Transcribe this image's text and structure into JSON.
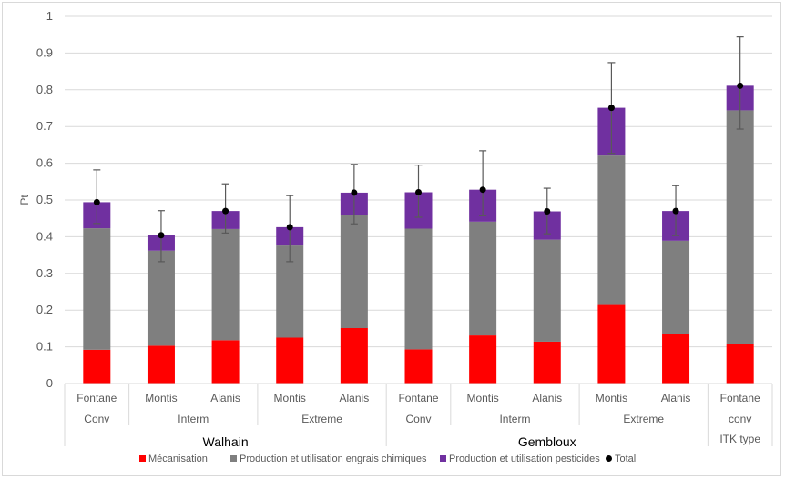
{
  "chart_data": {
    "type": "bar",
    "stacked": true,
    "title": "",
    "xlabel": "",
    "ylabel": "Pt",
    "ylim": [
      0,
      1
    ],
    "yticks": [
      "0",
      "0.1",
      "0.2",
      "0.3",
      "0.4",
      "0.5",
      "0.6",
      "0.7",
      "0.8",
      "0.9",
      "1"
    ],
    "grid": true,
    "legend_position": "bottom",
    "categories": [
      {
        "variety": "Fontane",
        "itk": "Conv",
        "site": "Walhain"
      },
      {
        "variety": "Montis",
        "itk": "Interm",
        "site": "Walhain"
      },
      {
        "variety": "Alanis",
        "itk": "Interm",
        "site": "Walhain"
      },
      {
        "variety": "Montis",
        "itk": "Extreme",
        "site": "Walhain"
      },
      {
        "variety": "Alanis",
        "itk": "Extreme",
        "site": "Walhain"
      },
      {
        "variety": "Fontane",
        "itk": "Conv",
        "site": "Gembloux"
      },
      {
        "variety": "Montis",
        "itk": "Interm",
        "site": "Gembloux"
      },
      {
        "variety": "Alanis",
        "itk": "Interm",
        "site": "Gembloux"
      },
      {
        "variety": "Montis",
        "itk": "Extreme",
        "site": "Gembloux"
      },
      {
        "variety": "Alanis",
        "itk": "Extreme",
        "site": "Gembloux"
      },
      {
        "variety": "Fontane",
        "itk": "conv",
        "site": "ITK type"
      }
    ],
    "itk_groups": [
      {
        "label": "Conv",
        "span": 1
      },
      {
        "label": "Interm",
        "span": 2
      },
      {
        "label": "Extreme",
        "span": 2
      },
      {
        "label": "Conv",
        "span": 1
      },
      {
        "label": "Interm",
        "span": 2
      },
      {
        "label": "Extreme",
        "span": 2
      },
      {
        "label": "conv",
        "span": 1
      }
    ],
    "site_groups": [
      {
        "label": "Walhain",
        "span": 5
      },
      {
        "label": "Gembloux",
        "span": 5
      },
      {
        "label": "ITK type",
        "span": 1
      }
    ],
    "series": [
      {
        "name": "Mécanisation",
        "color": "#ff0000",
        "values": [
          0.092,
          0.103,
          0.118,
          0.125,
          0.151,
          0.093,
          0.131,
          0.114,
          0.214,
          0.134,
          0.107
        ]
      },
      {
        "name": "Production et utilisation engrais chimiques",
        "color": "#7f7f7f",
        "values": [
          0.331,
          0.259,
          0.303,
          0.251,
          0.307,
          0.329,
          0.31,
          0.278,
          0.407,
          0.255,
          0.637
        ]
      },
      {
        "name": "Production et utilisation pesticides",
        "color": "#7030a0",
        "values": [
          0.071,
          0.042,
          0.049,
          0.05,
          0.062,
          0.099,
          0.087,
          0.077,
          0.13,
          0.081,
          0.067
        ]
      }
    ],
    "total": {
      "name": "Total",
      "color": "#000000",
      "values": [
        0.494,
        0.404,
        0.47,
        0.426,
        0.52,
        0.521,
        0.528,
        0.469,
        0.751,
        0.47,
        0.811
      ],
      "error_low": [
        0.436,
        0.332,
        0.41,
        0.332,
        0.435,
        0.453,
        0.457,
        0.408,
        0.627,
        0.403,
        0.693
      ],
      "error_high": [
        0.582,
        0.471,
        0.544,
        0.512,
        0.597,
        0.595,
        0.634,
        0.532,
        0.874,
        0.539,
        0.944
      ]
    }
  }
}
